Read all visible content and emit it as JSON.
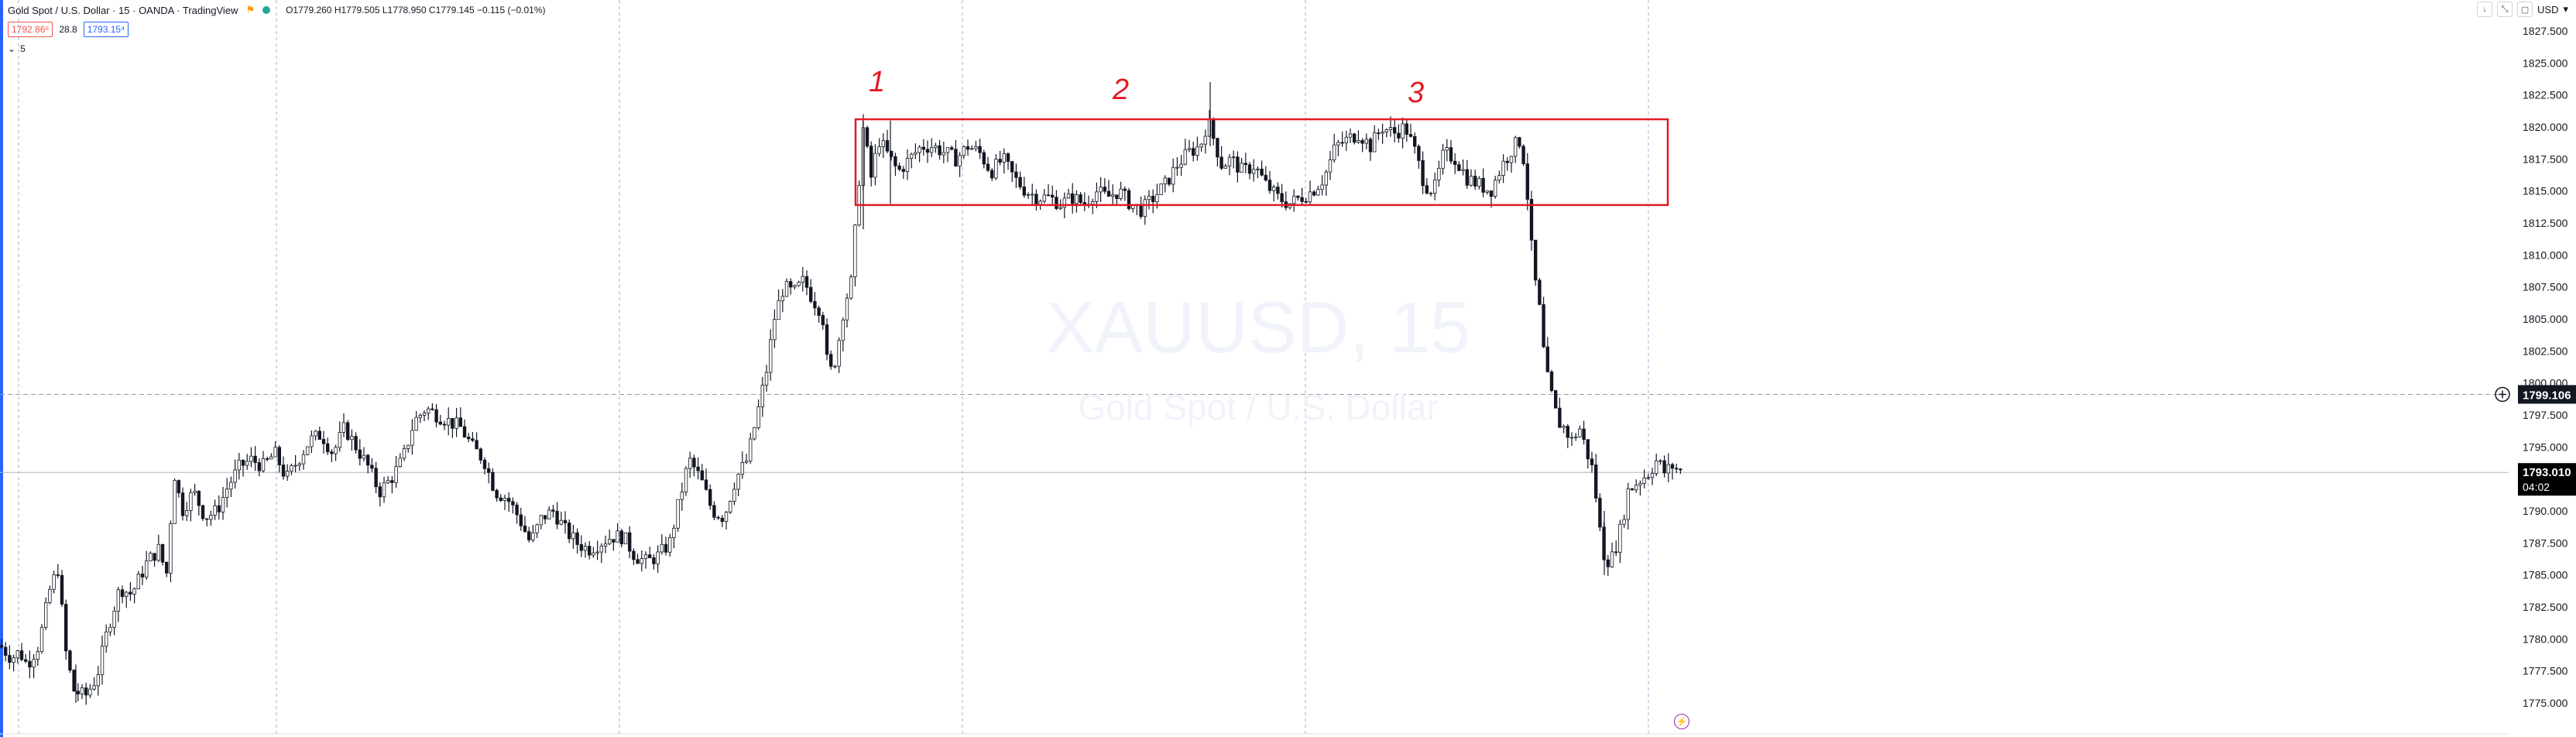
{
  "header": {
    "symbol_title": "Gold Spot / U.S. Dollar · 15 · OANDA · TradingView",
    "ohlc": "O1779.260 H1779.505 L1778.950 C1779.145 −0.115 (−0.01%)",
    "sell_price": "1792.86⁶",
    "spread": "28.8",
    "buy_price": "1793.15⁴",
    "interval_toggle": "5",
    "currency": "USD"
  },
  "toolbar": {
    "icons": [
      "arrow-down-icon",
      "collapse-icon",
      "maximize-icon"
    ]
  },
  "watermark": {
    "symbol": "XAUUSD, 15",
    "description": "Gold Spot / U.S. Dollar"
  },
  "annotations": {
    "labels": [
      "1",
      "2",
      "3"
    ]
  },
  "price_axis": {
    "ticks": [
      "1827.500",
      "1825.000",
      "1822.500",
      "1820.000",
      "1817.500",
      "1815.000",
      "1812.500",
      "1810.000",
      "1807.500",
      "1805.000",
      "1802.500",
      "1800.000",
      "1797.500",
      "1795.000",
      "1792.500",
      "1790.000",
      "1787.500",
      "1785.000",
      "1782.500",
      "1780.000",
      "1777.500",
      "1775.000"
    ],
    "crosshair_price": "1799.106",
    "last_price": "1793.010",
    "countdown": "04:02"
  },
  "colors": {
    "up": "#26a69a",
    "down": "#ef5350",
    "box": "#e01b24",
    "label_bg": "#131722",
    "grid": "#9db2d4"
  },
  "chart_data": {
    "type": "candlestick",
    "ylim": [
      1773.5,
      1829.5
    ],
    "ticks": [
      1827.5,
      1825,
      1822.5,
      1820,
      1817.5,
      1815,
      1812.5,
      1810,
      1807.5,
      1805,
      1802.5,
      1800,
      1797.5,
      1795,
      1792.5,
      1790,
      1787.5,
      1785,
      1782.5,
      1780,
      1777.5,
      1775
    ],
    "range_box": {
      "top": 1820.6,
      "bottom": 1813.9
    },
    "crosshair": 1799.106,
    "last": 1793.01,
    "path": [
      [
        0,
        1779.5
      ],
      [
        15,
        1778.5
      ],
      [
        25,
        1779.0
      ],
      [
        35,
        1778.0
      ],
      [
        50,
        1779.5
      ],
      [
        65,
        1784.0
      ],
      [
        75,
        1785.5
      ],
      [
        85,
        1779.0
      ],
      [
        95,
        1776.0
      ],
      [
        110,
        1775.5
      ],
      [
        125,
        1777.0
      ],
      [
        140,
        1781.0
      ],
      [
        155,
        1784.0
      ],
      [
        170,
        1783.5
      ],
      [
        190,
        1786.0
      ],
      [
        205,
        1787.0
      ],
      [
        215,
        1785.0
      ],
      [
        225,
        1793.0
      ],
      [
        235,
        1790.0
      ],
      [
        250,
        1791.5
      ],
      [
        265,
        1789.5
      ],
      [
        280,
        1790.0
      ],
      [
        295,
        1792.0
      ],
      [
        310,
        1793.5
      ],
      [
        325,
        1794.0
      ],
      [
        340,
        1793.5
      ],
      [
        355,
        1794.5
      ],
      [
        370,
        1792.5
      ],
      [
        385,
        1794.0
      ],
      [
        400,
        1795.5
      ],
      [
        415,
        1796.0
      ],
      [
        430,
        1794.5
      ],
      [
        445,
        1796.5
      ],
      [
        460,
        1795.0
      ],
      [
        475,
        1793.5
      ],
      [
        490,
        1791.5
      ],
      [
        505,
        1792.5
      ],
      [
        520,
        1794.0
      ],
      [
        535,
        1797.0
      ],
      [
        550,
        1798.0
      ],
      [
        565,
        1797.5
      ],
      [
        580,
        1797.0
      ],
      [
        595,
        1796.5
      ],
      [
        610,
        1795.0
      ],
      [
        625,
        1794.0
      ],
      [
        640,
        1791.5
      ],
      [
        655,
        1791.0
      ],
      [
        670,
        1789.5
      ],
      [
        685,
        1787.5
      ],
      [
        700,
        1789.5
      ],
      [
        715,
        1790.0
      ],
      [
        730,
        1788.5
      ],
      [
        745,
        1787.5
      ],
      [
        760,
        1787.0
      ],
      [
        775,
        1787.5
      ],
      [
        790,
        1788.0
      ],
      [
        805,
        1788.0
      ],
      [
        820,
        1786.5
      ],
      [
        835,
        1786.0
      ],
      [
        850,
        1786.5
      ],
      [
        865,
        1787.5
      ],
      [
        878,
        1791.0
      ],
      [
        890,
        1794.0
      ],
      [
        905,
        1792.5
      ],
      [
        920,
        1790.0
      ],
      [
        935,
        1789.5
      ],
      [
        950,
        1792.5
      ],
      [
        965,
        1794.0
      ],
      [
        978,
        1797.5
      ],
      [
        990,
        1801.0
      ],
      [
        1000,
        1805.0
      ],
      [
        1012,
        1807.5
      ],
      [
        1025,
        1807.0
      ],
      [
        1038,
        1808.0
      ],
      [
        1050,
        1806.5
      ],
      [
        1062,
        1805.5
      ],
      [
        1070,
        1800.5
      ],
      [
        1080,
        1802.0
      ],
      [
        1090,
        1806.0
      ],
      [
        1100,
        1808.0
      ],
      [
        1107,
        1814.0
      ],
      [
        1115,
        1820.0
      ],
      [
        1125,
        1816.0
      ],
      [
        1135,
        1819.0
      ],
      [
        1145,
        1818.0
      ],
      [
        1160,
        1816.5
      ],
      [
        1175,
        1817.5
      ],
      [
        1190,
        1818.5
      ],
      [
        1205,
        1818.5
      ],
      [
        1220,
        1818.0
      ],
      [
        1235,
        1817.5
      ],
      [
        1250,
        1818.5
      ],
      [
        1265,
        1818.0
      ],
      [
        1280,
        1816.5
      ],
      [
        1295,
        1817.5
      ],
      [
        1310,
        1816.0
      ],
      [
        1325,
        1815.0
      ],
      [
        1340,
        1814.5
      ],
      [
        1355,
        1814.5
      ],
      [
        1370,
        1814.0
      ],
      [
        1385,
        1814.5
      ],
      [
        1400,
        1814.0
      ],
      [
        1415,
        1815.0
      ],
      [
        1430,
        1814.5
      ],
      [
        1445,
        1815.0
      ],
      [
        1460,
        1814.0
      ],
      [
        1475,
        1813.5
      ],
      [
        1490,
        1814.5
      ],
      [
        1505,
        1815.5
      ],
      [
        1520,
        1817.0
      ],
      [
        1535,
        1818.0
      ],
      [
        1550,
        1818.5
      ],
      [
        1560,
        1820.5
      ],
      [
        1568,
        1819.0
      ],
      [
        1578,
        1817.0
      ],
      [
        1590,
        1817.5
      ],
      [
        1605,
        1816.5
      ],
      [
        1620,
        1817.0
      ],
      [
        1635,
        1815.5
      ],
      [
        1650,
        1814.5
      ],
      [
        1665,
        1814.0
      ],
      [
        1680,
        1814.5
      ],
      [
        1695,
        1815.0
      ],
      [
        1710,
        1816.0
      ],
      [
        1725,
        1818.5
      ],
      [
        1740,
        1819.0
      ],
      [
        1755,
        1819.5
      ],
      [
        1770,
        1818.5
      ],
      [
        1785,
        1820.0
      ],
      [
        1800,
        1819.5
      ],
      [
        1815,
        1820.0
      ],
      [
        1828,
        1818.0
      ],
      [
        1840,
        1815.5
      ],
      [
        1852,
        1815.0
      ],
      [
        1865,
        1818.0
      ],
      [
        1880,
        1817.5
      ],
      [
        1895,
        1816.0
      ],
      [
        1910,
        1815.5
      ],
      [
        1925,
        1815.0
      ],
      [
        1940,
        1817.0
      ],
      [
        1955,
        1818.5
      ],
      [
        1965,
        1819.0
      ],
      [
        1973,
        1814.5
      ],
      [
        1980,
        1809.0
      ],
      [
        1988,
        1806.0
      ],
      [
        1996,
        1801.0
      ],
      [
        2004,
        1799.0
      ],
      [
        2012,
        1797.0
      ],
      [
        2020,
        1796.5
      ],
      [
        2030,
        1795.5
      ],
      [
        2040,
        1796.5
      ],
      [
        2050,
        1794.5
      ],
      [
        2058,
        1793.0
      ],
      [
        2065,
        1789.0
      ],
      [
        2072,
        1786.5
      ],
      [
        2080,
        1786.0
      ],
      [
        2088,
        1787.5
      ],
      [
        2095,
        1789.0
      ],
      [
        2102,
        1791.5
      ],
      [
        2110,
        1792.0
      ],
      [
        2120,
        1792.5
      ],
      [
        2130,
        1793.0
      ],
      [
        2140,
        1794.0
      ],
      [
        2150,
        1793.0
      ],
      [
        2160,
        1793.5
      ],
      [
        2172,
        1793.0
      ]
    ]
  }
}
